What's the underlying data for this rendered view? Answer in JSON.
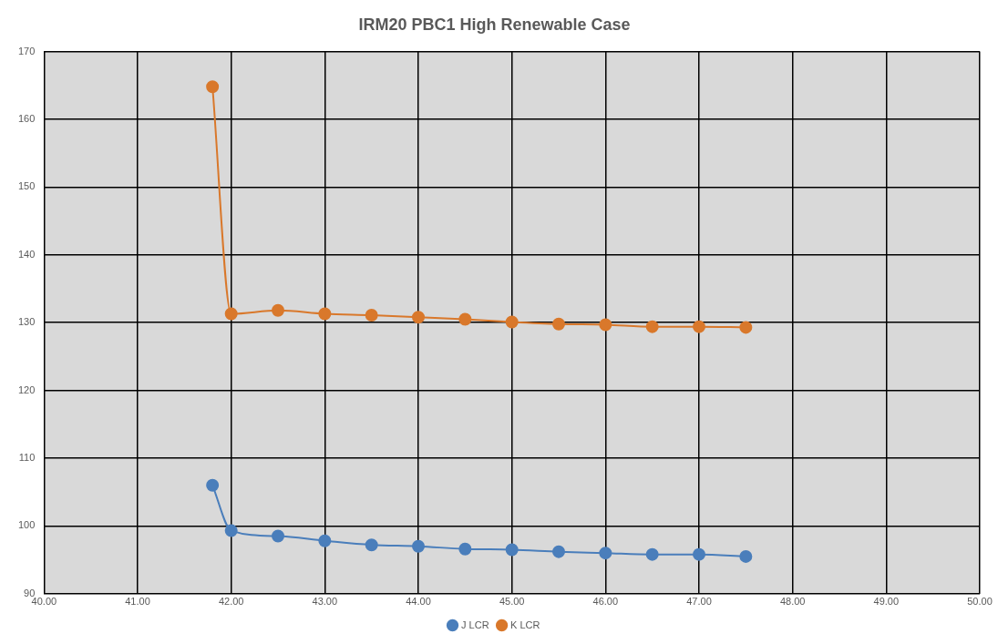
{
  "chart_data": {
    "type": "line",
    "title": "IRM20 PBC1 High Renewable Case",
    "x": [
      41.8,
      42,
      42.5,
      43,
      43.5,
      44,
      44.5,
      45,
      45.5,
      46,
      46.5,
      47,
      47.5
    ],
    "series": [
      {
        "name": "J LCR",
        "color": "#4a7ebb",
        "values": [
          106.0,
          99.3,
          98.5,
          97.8,
          97.2,
          97.0,
          96.6,
          96.5,
          96.2,
          96.0,
          95.8,
          95.8,
          95.5
        ]
      },
      {
        "name": "K LCR",
        "color": "#d9782b",
        "values": [
          164.8,
          131.3,
          131.8,
          131.3,
          131.1,
          130.8,
          130.5,
          130.1,
          129.8,
          129.7,
          129.4,
          129.4,
          129.3
        ]
      }
    ],
    "xlim": [
      40,
      50
    ],
    "xticks": [
      {
        "value": 40,
        "label": "40.00"
      },
      {
        "value": 41,
        "label": "41.00"
      },
      {
        "value": 42,
        "label": "42.00"
      },
      {
        "value": 43,
        "label": "43.00"
      },
      {
        "value": 44,
        "label": "44.00"
      },
      {
        "value": 45,
        "label": "45.00"
      },
      {
        "value": 46,
        "label": "46.00"
      },
      {
        "value": 47,
        "label": "47.00"
      },
      {
        "value": 48,
        "label": "48.00"
      },
      {
        "value": 49,
        "label": "49.00"
      },
      {
        "value": 50,
        "label": "50.00"
      }
    ],
    "ylim": [
      90,
      170
    ],
    "yticks": [
      90,
      100,
      110,
      120,
      130,
      140,
      150,
      160,
      170
    ],
    "grid": true,
    "legend": "bottom",
    "marker": "circle",
    "line_style": "solid"
  }
}
